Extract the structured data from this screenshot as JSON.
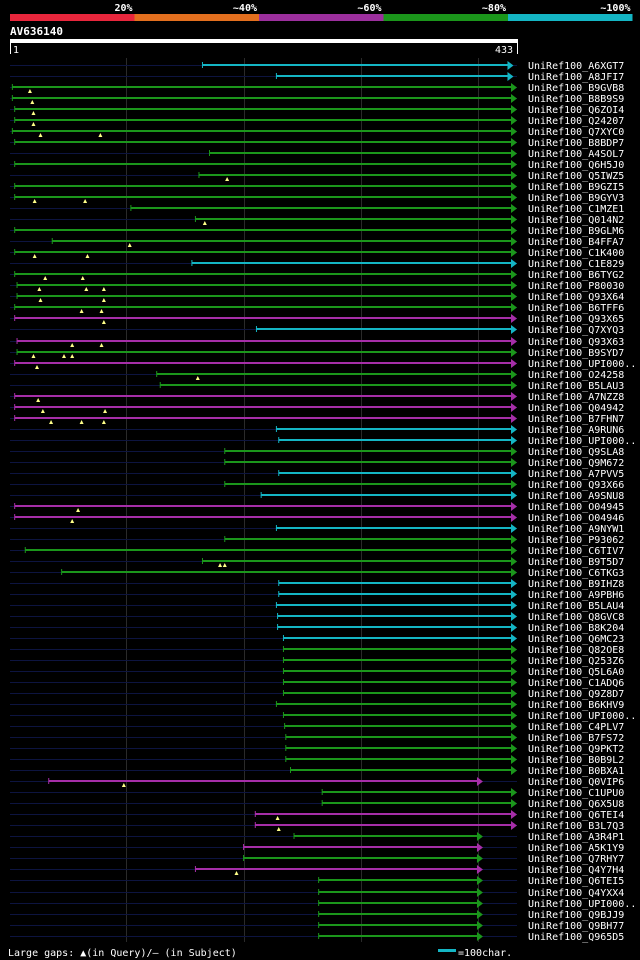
{
  "chart_data": {
    "type": "alignment",
    "title": "AV636140",
    "query_length": 433,
    "scale_start_label": "1",
    "scale_end_label": "433",
    "identity_legend": [
      {
        "label": "20%",
        "color": "#e8263c"
      },
      {
        "label": "~40%",
        "color": "#e36f1e"
      },
      {
        "label": "~60%",
        "color": "#9c2f9d"
      },
      {
        "label": "~80%",
        "color": "#1b961b"
      },
      {
        "label": "~100%",
        "color": "#14b5c4"
      }
    ],
    "footer_gaps_text": "Large gaps: ▲(in Query)/– (in Subject)",
    "footer_scale_text": "=100char.",
    "hits": [
      {
        "name": "UniRef100_A6XGT7",
        "start": 165,
        "end": 430,
        "color": "cyan",
        "marks": []
      },
      {
        "name": "UniRef100_A8JFI7",
        "start": 228,
        "end": 430,
        "color": "cyan",
        "marks": []
      },
      {
        "name": "UniRef100_B9GVB8",
        "start": 3,
        "end": 433,
        "color": "green",
        "marks": [
          18
        ]
      },
      {
        "name": "UniRef100_B8B9S9",
        "start": 3,
        "end": 433,
        "color": "green",
        "marks": [
          20
        ]
      },
      {
        "name": "UniRef100_Q6ZOI4",
        "start": 5,
        "end": 433,
        "color": "green",
        "marks": [
          21
        ]
      },
      {
        "name": "UniRef100_Q24207",
        "start": 5,
        "end": 433,
        "color": "green",
        "marks": [
          21
        ]
      },
      {
        "name": "UniRef100_Q7XYC0",
        "start": 3,
        "end": 433,
        "color": "green",
        "marks": [
          27,
          78
        ]
      },
      {
        "name": "UniRef100_B8BDP7",
        "start": 5,
        "end": 433,
        "color": "green",
        "marks": []
      },
      {
        "name": "UniRef100_A4SOL7",
        "start": 171,
        "end": 433,
        "color": "green",
        "marks": []
      },
      {
        "name": "UniRef100_Q6H5J0",
        "start": 5,
        "end": 433,
        "color": "green",
        "marks": []
      },
      {
        "name": "UniRef100_Q5IWZ5",
        "start": 162,
        "end": 433,
        "color": "green",
        "marks": [
          186
        ]
      },
      {
        "name": "UniRef100_B9GZI5",
        "start": 5,
        "end": 433,
        "color": "green",
        "marks": []
      },
      {
        "name": "UniRef100_B9GYV3",
        "start": 5,
        "end": 433,
        "color": "green",
        "marks": [
          22,
          65
        ]
      },
      {
        "name": "UniRef100_C1MZE1",
        "start": 104,
        "end": 433,
        "color": "green",
        "marks": []
      },
      {
        "name": "UniRef100_Q014N2",
        "start": 159,
        "end": 433,
        "color": "green",
        "marks": [
          167
        ]
      },
      {
        "name": "UniRef100_B9GLM6",
        "start": 5,
        "end": 433,
        "color": "green",
        "marks": []
      },
      {
        "name": "UniRef100_B4FFA7",
        "start": 37,
        "end": 433,
        "color": "green",
        "marks": [
          103
        ]
      },
      {
        "name": "UniRef100_C1K400",
        "start": 5,
        "end": 433,
        "color": "green",
        "marks": [
          22,
          67
        ]
      },
      {
        "name": "UniRef100_C1E829",
        "start": 156,
        "end": 433,
        "color": "cyan",
        "marks": []
      },
      {
        "name": "UniRef100_B6TYG2",
        "start": 5,
        "end": 433,
        "color": "green",
        "marks": [
          31,
          63
        ]
      },
      {
        "name": "UniRef100_P80030",
        "start": 7,
        "end": 433,
        "color": "green",
        "marks": [
          26,
          66,
          81
        ]
      },
      {
        "name": "UniRef100_Q93X64",
        "start": 7,
        "end": 433,
        "color": "green",
        "marks": [
          27,
          81
        ]
      },
      {
        "name": "UniRef100_B6TFF6",
        "start": 5,
        "end": 433,
        "color": "green",
        "marks": [
          62,
          79
        ]
      },
      {
        "name": "UniRef100_Q93X65",
        "start": 5,
        "end": 433,
        "color": "magenta",
        "marks": [
          81
        ]
      },
      {
        "name": "UniRef100_Q7XYQ3",
        "start": 211,
        "end": 433,
        "color": "cyan",
        "marks": []
      },
      {
        "name": "UniRef100_Q93X63",
        "start": 7,
        "end": 433,
        "color": "magenta",
        "marks": [
          54,
          79
        ]
      },
      {
        "name": "UniRef100_B9SYD7",
        "start": 7,
        "end": 433,
        "color": "green",
        "marks": [
          21,
          47,
          54
        ]
      },
      {
        "name": "UniRef100_UPI000..",
        "start": 5,
        "end": 433,
        "color": "magenta",
        "marks": [
          24
        ]
      },
      {
        "name": "UniRef100_O24258",
        "start": 126,
        "end": 433,
        "color": "green",
        "marks": [
          161
        ]
      },
      {
        "name": "UniRef100_B5LAU3",
        "start": 129,
        "end": 433,
        "color": "green",
        "marks": []
      },
      {
        "name": "UniRef100_A7NZZ8",
        "start": 5,
        "end": 433,
        "color": "magenta",
        "marks": [
          25
        ]
      },
      {
        "name": "UniRef100_Q04942",
        "start": 5,
        "end": 433,
        "color": "magenta",
        "marks": [
          29,
          82
        ]
      },
      {
        "name": "UniRef100_B7FHN7",
        "start": 5,
        "end": 433,
        "color": "magenta",
        "marks": [
          36,
          62,
          81
        ]
      },
      {
        "name": "UniRef100_A9RUN6",
        "start": 228,
        "end": 433,
        "color": "cyan",
        "marks": []
      },
      {
        "name": "UniRef100_UPI000..",
        "start": 230,
        "end": 433,
        "color": "cyan",
        "marks": []
      },
      {
        "name": "UniRef100_Q9SLA8",
        "start": 184,
        "end": 433,
        "color": "green",
        "marks": []
      },
      {
        "name": "UniRef100_Q9M672",
        "start": 184,
        "end": 433,
        "color": "green",
        "marks": []
      },
      {
        "name": "UniRef100_A7PVV5",
        "start": 230,
        "end": 433,
        "color": "cyan",
        "marks": []
      },
      {
        "name": "UniRef100_Q93X66",
        "start": 184,
        "end": 433,
        "color": "green",
        "marks": []
      },
      {
        "name": "UniRef100_A9SNU8",
        "start": 215,
        "end": 433,
        "color": "cyan",
        "marks": []
      },
      {
        "name": "UniRef100_O04945",
        "start": 5,
        "end": 433,
        "color": "magenta",
        "marks": [
          59
        ]
      },
      {
        "name": "UniRef100_O04946",
        "start": 5,
        "end": 433,
        "color": "magenta",
        "marks": [
          54
        ]
      },
      {
        "name": "UniRef100_A9NYW1",
        "start": 228,
        "end": 433,
        "color": "cyan",
        "marks": []
      },
      {
        "name": "UniRef100_P93062",
        "start": 184,
        "end": 433,
        "color": "green",
        "marks": []
      },
      {
        "name": "UniRef100_C6TIV7",
        "start": 14,
        "end": 433,
        "color": "green",
        "marks": []
      },
      {
        "name": "UniRef100_B9T5D7",
        "start": 165,
        "end": 433,
        "color": "green",
        "marks": [
          180,
          184
        ]
      },
      {
        "name": "UniRef100_C6TKG3",
        "start": 45,
        "end": 433,
        "color": "green",
        "marks": []
      },
      {
        "name": "UniRef100_B9IHZ8",
        "start": 230,
        "end": 433,
        "color": "cyan",
        "marks": []
      },
      {
        "name": "UniRef100_A9PBH6",
        "start": 230,
        "end": 433,
        "color": "cyan",
        "marks": []
      },
      {
        "name": "UniRef100_B5LAU4",
        "start": 228,
        "end": 433,
        "color": "cyan",
        "marks": []
      },
      {
        "name": "UniRef100_Q8GVC8",
        "start": 229,
        "end": 433,
        "color": "cyan",
        "marks": []
      },
      {
        "name": "UniRef100_B8K204",
        "start": 229,
        "end": 433,
        "color": "cyan",
        "marks": []
      },
      {
        "name": "UniRef100_Q6MC23",
        "start": 234,
        "end": 433,
        "color": "cyan",
        "marks": []
      },
      {
        "name": "UniRef100_Q82OE8",
        "start": 234,
        "end": 433,
        "color": "green",
        "marks": []
      },
      {
        "name": "UniRef100_Q253Z6",
        "start": 234,
        "end": 433,
        "color": "green",
        "marks": []
      },
      {
        "name": "UniRef100_Q5L6A0",
        "start": 234,
        "end": 433,
        "color": "green",
        "marks": []
      },
      {
        "name": "UniRef100_C1ADQ6",
        "start": 234,
        "end": 433,
        "color": "green",
        "marks": []
      },
      {
        "name": "UniRef100_Q9Z8D7",
        "start": 234,
        "end": 433,
        "color": "green",
        "marks": []
      },
      {
        "name": "UniRef100_B6KHV9",
        "start": 228,
        "end": 433,
        "color": "green",
        "marks": []
      },
      {
        "name": "UniRef100_UPI000..",
        "start": 234,
        "end": 433,
        "color": "green",
        "marks": []
      },
      {
        "name": "UniRef100_C4PLV7",
        "start": 235,
        "end": 433,
        "color": "green",
        "marks": []
      },
      {
        "name": "UniRef100_B7FS72",
        "start": 236,
        "end": 433,
        "color": "green",
        "marks": []
      },
      {
        "name": "UniRef100_Q9PKT2",
        "start": 236,
        "end": 433,
        "color": "green",
        "marks": []
      },
      {
        "name": "UniRef100_B0B9L2",
        "start": 236,
        "end": 433,
        "color": "green",
        "marks": []
      },
      {
        "name": "UniRef100_B0BXA1",
        "start": 240,
        "end": 433,
        "color": "green",
        "marks": []
      },
      {
        "name": "UniRef100_Q0VIP6",
        "start": 34,
        "end": 404,
        "color": "magenta",
        "marks": [
          98
        ]
      },
      {
        "name": "UniRef100_C1UPU0",
        "start": 267,
        "end": 433,
        "color": "green",
        "marks": []
      },
      {
        "name": "UniRef100_Q6X5U8",
        "start": 267,
        "end": 433,
        "color": "green",
        "marks": []
      },
      {
        "name": "UniRef100_Q6TEI4",
        "start": 210,
        "end": 433,
        "color": "magenta",
        "marks": [
          229
        ]
      },
      {
        "name": "UniRef100_B3L7Q3",
        "start": 210,
        "end": 433,
        "color": "magenta",
        "marks": [
          230
        ]
      },
      {
        "name": "UniRef100_A3R4P1",
        "start": 243,
        "end": 404,
        "color": "green",
        "marks": []
      },
      {
        "name": "UniRef100_A5K1Y9",
        "start": 200,
        "end": 404,
        "color": "magenta",
        "marks": []
      },
      {
        "name": "UniRef100_Q7RHY7",
        "start": 200,
        "end": 404,
        "color": "green",
        "marks": []
      },
      {
        "name": "UniRef100_Q4Y7H4",
        "start": 159,
        "end": 404,
        "color": "magenta",
        "marks": [
          194
        ]
      },
      {
        "name": "UniRef100_Q6TEI5",
        "start": 264,
        "end": 404,
        "color": "green",
        "marks": []
      },
      {
        "name": "UniRef100_Q4YXX4",
        "start": 264,
        "end": 404,
        "color": "green",
        "marks": []
      },
      {
        "name": "UniRef100_UPI000..",
        "start": 264,
        "end": 404,
        "color": "green",
        "marks": []
      },
      {
        "name": "UniRef100_Q9BJJ9",
        "start": 264,
        "end": 404,
        "color": "green",
        "marks": []
      },
      {
        "name": "UniRef100_Q9BH77",
        "start": 264,
        "end": 404,
        "color": "green",
        "marks": []
      },
      {
        "name": "UniRef100_Q965D5",
        "start": 264,
        "end": 404,
        "color": "green",
        "marks": []
      }
    ]
  }
}
